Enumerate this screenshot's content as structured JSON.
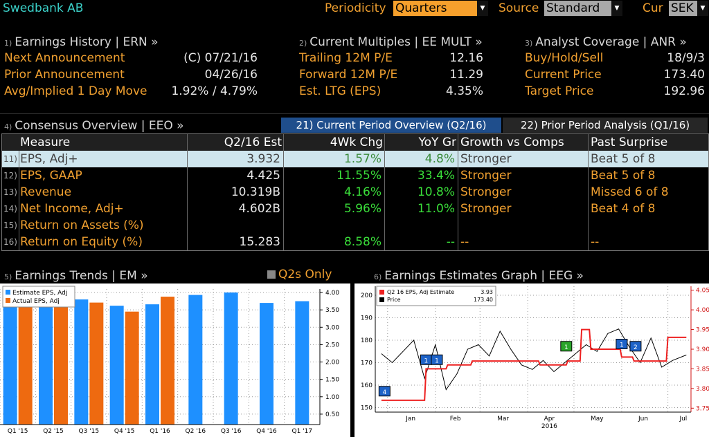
{
  "header": {
    "company": "Swedbank AB",
    "periodicity_label": "Periodicity",
    "periodicity_value": "Quarters",
    "source_label": "Source",
    "source_value": "Standard",
    "cur_label": "Cur",
    "cur_value": "SEK"
  },
  "earnings_history": {
    "num": "1)",
    "title": "Earnings History | ERN »",
    "rows": [
      {
        "label": "Next Announcement",
        "value": "(C)  07/21/16"
      },
      {
        "label": "Prior Announcement",
        "value": "04/26/16"
      },
      {
        "label": "Avg/Implied 1 Day Move",
        "value": "1.92% / 4.79%"
      }
    ]
  },
  "current_multiples": {
    "num": "2)",
    "title": "Current Multiples | EE MULT »",
    "rows": [
      {
        "label": "Trailing 12M P/E",
        "value": "12.16"
      },
      {
        "label": "Forward 12M P/E",
        "value": "11.29"
      },
      {
        "label": "Est. LTG (EPS)",
        "value": "4.35%"
      }
    ]
  },
  "analyst_coverage": {
    "num": "3)",
    "title": "Analyst Coverage | ANR »",
    "rows": [
      {
        "label": "Buy/Hold/Sell",
        "value": "18/9/3"
      },
      {
        "label": "Current Price",
        "value": "173.40"
      },
      {
        "label": "Target Price",
        "value": "192.96"
      }
    ]
  },
  "consensus": {
    "num": "4)",
    "title": "Consensus Overview | EEO »",
    "tab_current": "21) Current Period Overview (Q2/16)",
    "tab_prior": "22) Prior Period Analysis (Q1/16)",
    "columns": [
      "Measure",
      "Q2/16 Est",
      "4Wk Chg",
      "YoY Gr",
      "Growth vs Comps",
      "Past Surprise"
    ],
    "rows": [
      {
        "num": "11)",
        "measure": "EPS, Adj+",
        "est": "3.932",
        "chg": "1.57%",
        "yoy": "4.8%",
        "growth": "Stronger",
        "surprise": "Beat 5 of 8"
      },
      {
        "num": "12)",
        "measure": "EPS, GAAP",
        "est": "4.425",
        "chg": "11.55%",
        "yoy": "33.4%",
        "growth": "Stronger",
        "surprise": "Beat 5 of 8"
      },
      {
        "num": "13)",
        "measure": "Revenue",
        "est": "10.319B",
        "chg": "4.16%",
        "yoy": "10.8%",
        "growth": "Stronger",
        "surprise": "Missed 6 of 8"
      },
      {
        "num": "14)",
        "measure": "Net Income, Adj+",
        "est": "4.602B",
        "chg": "5.96%",
        "yoy": "11.0%",
        "growth": "Stronger",
        "surprise": "Beat 4 of 8"
      },
      {
        "num": "15)",
        "measure": "Return on Assets (%)",
        "est": "",
        "chg": "",
        "yoy": "",
        "growth": "",
        "surprise": ""
      },
      {
        "num": "16)",
        "measure": "Return on Equity (%)",
        "est": "15.283",
        "chg": "8.58%",
        "yoy": "--",
        "growth": "--",
        "surprise": "--"
      }
    ]
  },
  "earnings_trends": {
    "num": "5)",
    "title": "Earnings Trends | EM »",
    "q2s_label": "Q2s Only"
  },
  "earnings_graph": {
    "num": "6)",
    "title": "Earnings Estimates Graph | EEG »"
  },
  "colors": {
    "amber": "#f0a030",
    "estimate_blue": "#1e90ff",
    "actual_orange": "#ee6a10",
    "green": "#3adf3a",
    "tab_blue": "#1f4e8c",
    "highlight": "#cfe6ee"
  },
  "chart_data": [
    {
      "type": "bar",
      "title": "",
      "categories": [
        "Q1 '15",
        "Q2 '15",
        "Q3 '15",
        "Q4 '15",
        "Q1 '16",
        "Q2 '16",
        "Q3 '16",
        "Q4 '16",
        "Q1 '17"
      ],
      "series": [
        {
          "name": "Estimate EPS, Adj",
          "color": "#1e90ff",
          "values": [
            3.72,
            3.66,
            3.8,
            3.62,
            3.66,
            3.93,
            4.0,
            3.7,
            3.75
          ]
        },
        {
          "name": "Actual EPS, Adj",
          "color": "#ee6a10",
          "values": [
            3.62,
            3.67,
            3.71,
            3.45,
            3.88,
            null,
            null,
            null,
            null
          ]
        }
      ],
      "y_ticks": [
        "0.50",
        "1.00",
        "1.50",
        "2.00",
        "2.50",
        "3.00",
        "3.50",
        "4.00"
      ],
      "ylim": [
        0.2,
        4.1
      ],
      "legend": "top-left",
      "grid": true
    },
    {
      "type": "line",
      "title": "",
      "x_labels": [
        "Jan",
        "Feb",
        "Mar",
        "Apr",
        "May",
        "Jun",
        "Jul"
      ],
      "x_sublabel": "2016",
      "left_axis": {
        "ticks": [
          "150",
          "160",
          "170",
          "180",
          "190",
          "200"
        ],
        "ylim": [
          148,
          204
        ]
      },
      "right_axis": {
        "ticks": [
          "3.75",
          "3.80",
          "3.85",
          "3.90",
          "3.95",
          "4.00",
          "4.05"
        ],
        "ylim": [
          3.74,
          4.06
        ]
      },
      "legend": [
        {
          "name": "Q2 16 EPS, Adj Estimate",
          "value": "3.93",
          "color": "#ee2020"
        },
        {
          "name": "Price",
          "value": "173.40",
          "color": "#000000"
        }
      ],
      "series": [
        {
          "name": "Q2 16 EPS, Adj Estimate",
          "axis": "right",
          "color": "#ee2020",
          "x": [
            "2015-12-28",
            "2016-01-25",
            "2016-01-26",
            "2016-02-08",
            "2016-02-09",
            "2016-02-24",
            "2016-02-25",
            "2016-04-08",
            "2016-04-09",
            "2016-04-26",
            "2016-04-27",
            "2016-05-05",
            "2016-05-06",
            "2016-05-11",
            "2016-05-12",
            "2016-05-31",
            "2016-06-01",
            "2016-06-08",
            "2016-06-09",
            "2016-06-30",
            "2016-07-01",
            "2016-07-13"
          ],
          "y": [
            3.77,
            3.77,
            3.85,
            3.85,
            3.86,
            3.86,
            3.87,
            3.87,
            3.86,
            3.86,
            3.87,
            3.87,
            3.95,
            3.95,
            3.9,
            3.9,
            3.88,
            3.88,
            3.87,
            3.87,
            3.93,
            3.93
          ]
        },
        {
          "name": "Price",
          "axis": "left",
          "color": "#000000",
          "x": [
            "2015-12-28",
            "2016-01-04",
            "2016-01-11",
            "2016-01-18",
            "2016-01-25",
            "2016-02-01",
            "2016-02-08",
            "2016-02-15",
            "2016-02-22",
            "2016-02-29",
            "2016-03-07",
            "2016-03-14",
            "2016-03-21",
            "2016-03-28",
            "2016-04-04",
            "2016-04-11",
            "2016-04-18",
            "2016-04-25",
            "2016-05-02",
            "2016-05-09",
            "2016-05-16",
            "2016-05-23",
            "2016-05-30",
            "2016-06-06",
            "2016-06-13",
            "2016-06-20",
            "2016-06-27",
            "2016-07-04",
            "2016-07-13"
          ],
          "y": [
            174,
            170,
            175,
            180,
            163,
            178,
            158,
            165,
            176,
            178,
            173,
            184,
            176,
            169,
            167,
            171,
            166,
            170,
            174,
            178,
            175,
            183,
            185,
            177,
            170,
            181,
            168,
            171,
            173.4
          ]
        }
      ],
      "markers": [
        {
          "label": "4",
          "x": "2015-12-30",
          "y": 157
        },
        {
          "label": "1",
          "x": "2016-01-26",
          "y": 171
        },
        {
          "label": "1",
          "x": "2016-02-02",
          "y": 171
        },
        {
          "label": "1",
          "x": "2016-04-26",
          "y": 177
        },
        {
          "label": "1",
          "x": "2016-06-01",
          "y": 178
        },
        {
          "label": "2",
          "x": "2016-06-10",
          "y": 177
        }
      ],
      "grid": true
    }
  ]
}
